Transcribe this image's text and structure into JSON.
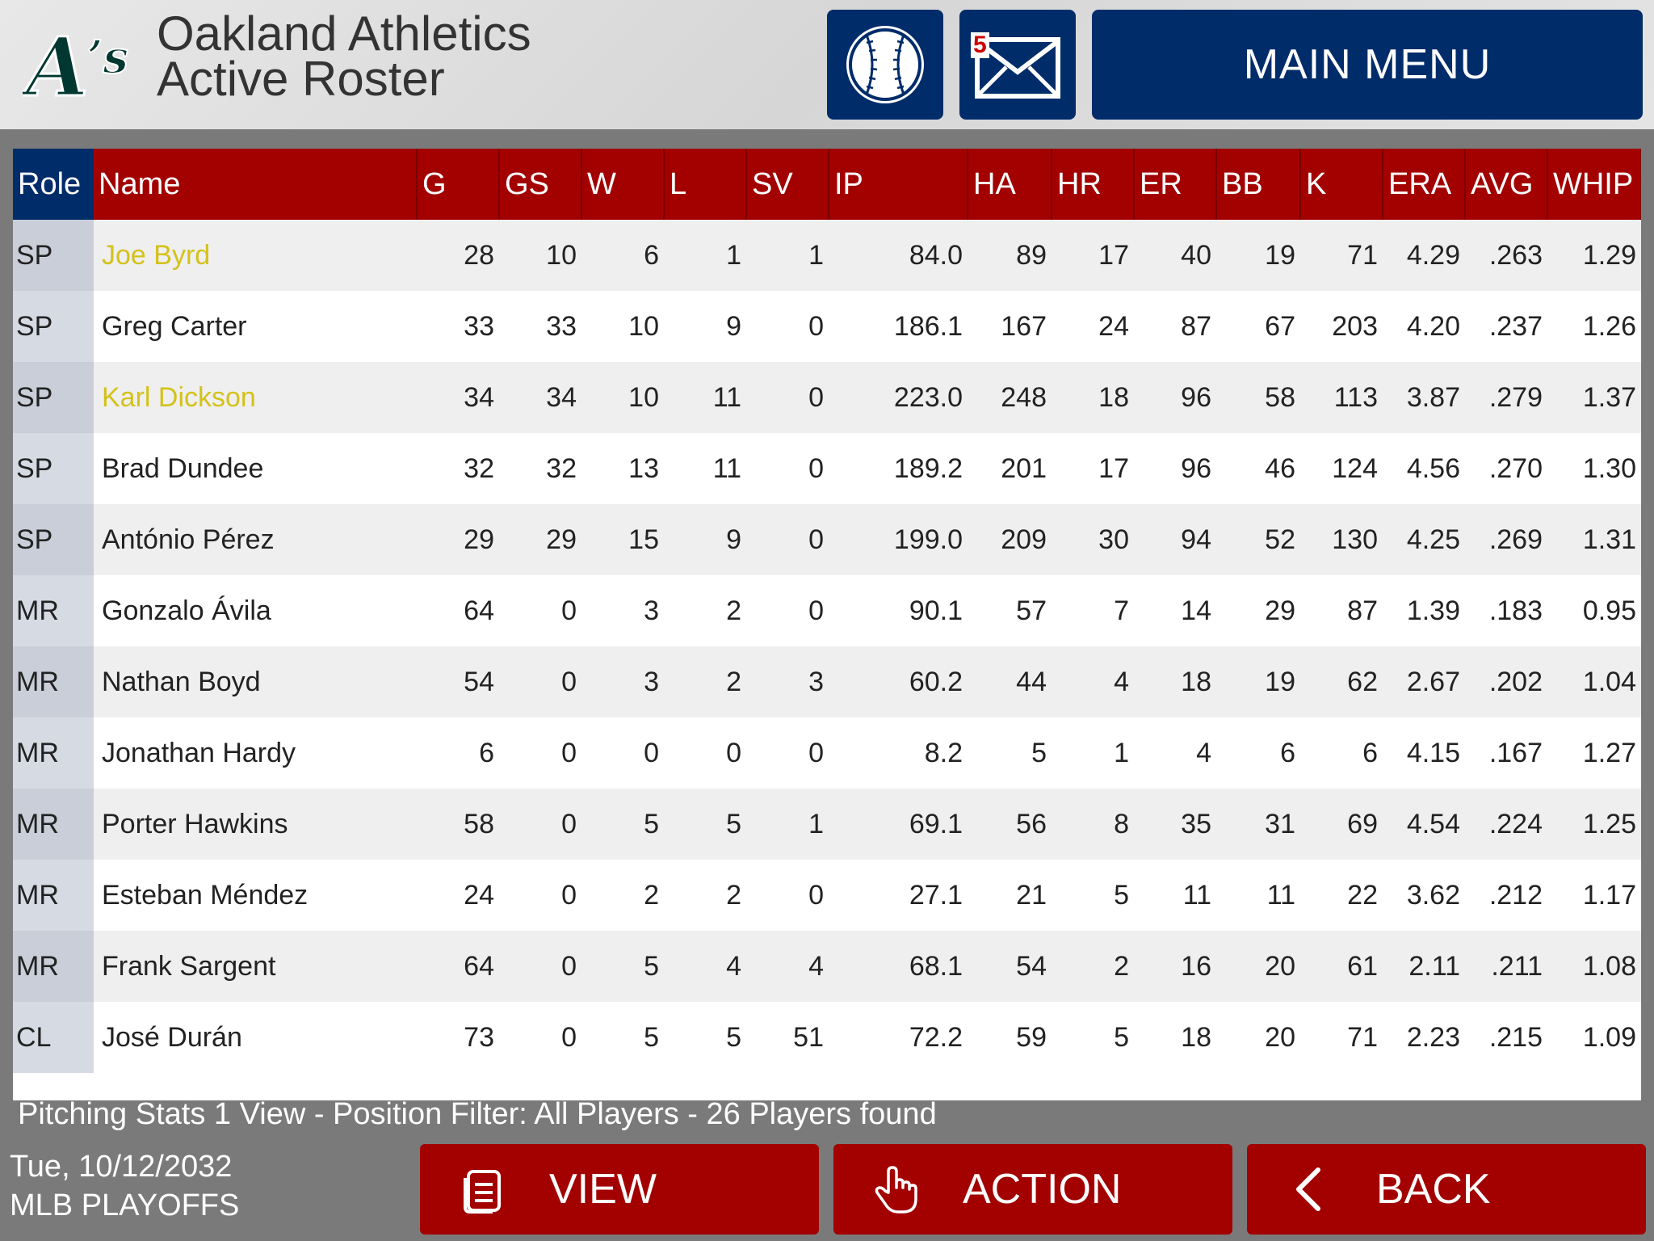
{
  "header": {
    "team_name": "Oakland Athletics",
    "subtitle": "Active Roster",
    "logo_icon": "athletics-logo",
    "mail_count": "5",
    "main_menu_label": "MAIN MENU"
  },
  "table": {
    "columns": [
      "Role",
      "Name",
      "G",
      "GS",
      "W",
      "L",
      "SV",
      "IP",
      "HA",
      "HR",
      "ER",
      "BB",
      "K",
      "ERA",
      "AVG",
      "WHIP"
    ],
    "rows": [
      {
        "role": "SP",
        "name": "Joe Byrd",
        "highlight": true,
        "stats": [
          "28",
          "10",
          "6",
          "1",
          "1",
          "84.0",
          "89",
          "17",
          "40",
          "19",
          "71",
          "4.29",
          ".263",
          "1.29"
        ]
      },
      {
        "role": "SP",
        "name": "Greg Carter",
        "highlight": false,
        "stats": [
          "33",
          "33",
          "10",
          "9",
          "0",
          "186.1",
          "167",
          "24",
          "87",
          "67",
          "203",
          "4.20",
          ".237",
          "1.26"
        ]
      },
      {
        "role": "SP",
        "name": "Karl Dickson",
        "highlight": true,
        "stats": [
          "34",
          "34",
          "10",
          "11",
          "0",
          "223.0",
          "248",
          "18",
          "96",
          "58",
          "113",
          "3.87",
          ".279",
          "1.37"
        ]
      },
      {
        "role": "SP",
        "name": "Brad Dundee",
        "highlight": false,
        "stats": [
          "32",
          "32",
          "13",
          "11",
          "0",
          "189.2",
          "201",
          "17",
          "96",
          "46",
          "124",
          "4.56",
          ".270",
          "1.30"
        ]
      },
      {
        "role": "SP",
        "name": "António Pérez",
        "highlight": false,
        "stats": [
          "29",
          "29",
          "15",
          "9",
          "0",
          "199.0",
          "209",
          "30",
          "94",
          "52",
          "130",
          "4.25",
          ".269",
          "1.31"
        ]
      },
      {
        "role": "MR",
        "name": "Gonzalo Ávila",
        "highlight": false,
        "stats": [
          "64",
          "0",
          "3",
          "2",
          "0",
          "90.1",
          "57",
          "7",
          "14",
          "29",
          "87",
          "1.39",
          ".183",
          "0.95"
        ]
      },
      {
        "role": "MR",
        "name": "Nathan Boyd",
        "highlight": false,
        "stats": [
          "54",
          "0",
          "3",
          "2",
          "3",
          "60.2",
          "44",
          "4",
          "18",
          "19",
          "62",
          "2.67",
          ".202",
          "1.04"
        ]
      },
      {
        "role": "MR",
        "name": "Jonathan Hardy",
        "highlight": false,
        "stats": [
          "6",
          "0",
          "0",
          "0",
          "0",
          "8.2",
          "5",
          "1",
          "4",
          "6",
          "6",
          "4.15",
          ".167",
          "1.27"
        ]
      },
      {
        "role": "MR",
        "name": "Porter Hawkins",
        "highlight": false,
        "stats": [
          "58",
          "0",
          "5",
          "5",
          "1",
          "69.1",
          "56",
          "8",
          "35",
          "31",
          "69",
          "4.54",
          ".224",
          "1.25"
        ]
      },
      {
        "role": "MR",
        "name": "Esteban Méndez",
        "highlight": false,
        "stats": [
          "24",
          "0",
          "2",
          "2",
          "0",
          "27.1",
          "21",
          "5",
          "11",
          "11",
          "22",
          "3.62",
          ".212",
          "1.17"
        ]
      },
      {
        "role": "MR",
        "name": "Frank Sargent",
        "highlight": false,
        "stats": [
          "64",
          "0",
          "5",
          "4",
          "4",
          "68.1",
          "54",
          "2",
          "16",
          "20",
          "61",
          "2.11",
          ".211",
          "1.08"
        ]
      },
      {
        "role": "CL",
        "name": "José Durán",
        "highlight": false,
        "stats": [
          "73",
          "0",
          "5",
          "5",
          "51",
          "72.2",
          "59",
          "5",
          "18",
          "20",
          "71",
          "2.23",
          ".215",
          "1.09"
        ]
      }
    ]
  },
  "footer": {
    "status": "Pitching Stats 1 View - Position Filter: All Players - 26 Players found",
    "date": "Tue, 10/12/2032",
    "phase": "MLB PLAYOFFS",
    "view_label": "VIEW",
    "action_label": "ACTION",
    "back_label": "BACK"
  },
  "colors": {
    "header_navy": "#002c6a",
    "table_header_red": "#a30000",
    "highlight_yellow": "#d4c21a",
    "athletics_green": "#003831"
  }
}
